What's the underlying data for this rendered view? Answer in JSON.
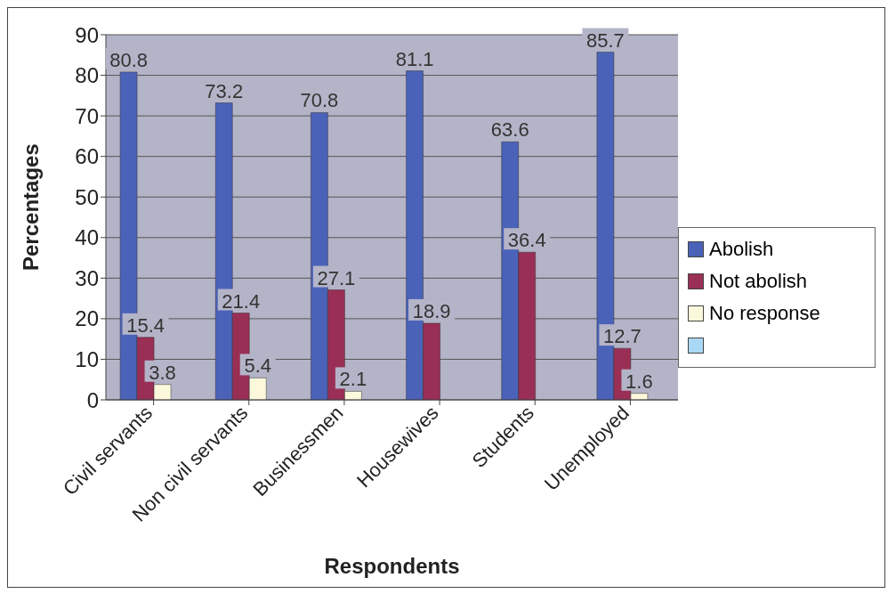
{
  "chart_data": {
    "type": "bar",
    "xlabel": "Respondents",
    "ylabel": "Percentages",
    "categories": [
      "Civil servants",
      "Non civil servants",
      "Businessmen",
      "Housewives",
      "Students",
      "Unemployed"
    ],
    "series": [
      {
        "name": "Abolish",
        "color": "#4a62b8",
        "values": [
          80.8,
          73.2,
          70.8,
          81.1,
          63.6,
          85.7
        ]
      },
      {
        "name": "Not abolish",
        "color": "#9a2f55",
        "values": [
          15.4,
          21.4,
          27.1,
          18.9,
          36.4,
          12.7
        ]
      },
      {
        "name": "No response",
        "color": "#fbf8dc",
        "values": [
          3.8,
          5.4,
          2.1,
          null,
          null,
          1.6
        ]
      },
      {
        "color": "#a9d8f5",
        "values": [
          null,
          null,
          null,
          null,
          null,
          null
        ]
      }
    ],
    "ylim": [
      0,
      90
    ],
    "yticks": [
      0,
      10,
      20,
      30,
      40,
      50,
      60,
      70,
      80,
      90
    ],
    "grid": "y",
    "legend": "right",
    "data_labels": true
  }
}
